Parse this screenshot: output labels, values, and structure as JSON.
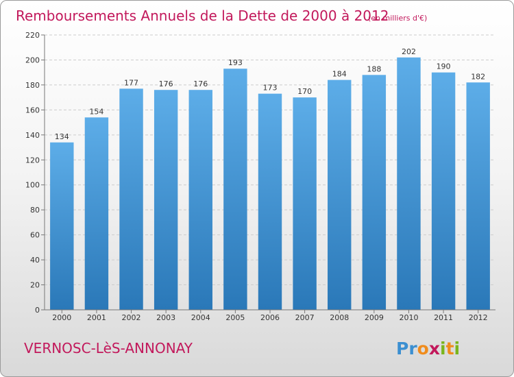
{
  "chart_data": {
    "type": "bar",
    "title": "Remboursements Annuels de la Dette de 2000 à 2012",
    "unit": "(en milliers d'€)",
    "categories": [
      "2000",
      "2001",
      "2002",
      "2003",
      "2004",
      "2005",
      "2006",
      "2007",
      "2008",
      "2009",
      "2010",
      "2011",
      "2012"
    ],
    "values": [
      134,
      154,
      177,
      176,
      176,
      193,
      173,
      170,
      184,
      188,
      202,
      190,
      182
    ],
    "ylim": [
      0,
      220
    ],
    "yticks": [
      0,
      20,
      40,
      60,
      80,
      100,
      120,
      140,
      160,
      180,
      200,
      220
    ],
    "grid": true,
    "xlabel": "",
    "ylabel": ""
  },
  "commune": "VERNOSC-LèS-ANNONAY",
  "logo": {
    "letters": [
      "P",
      "r",
      "o",
      "x",
      "i",
      "t",
      "i"
    ],
    "colors": [
      "#3b8fd1",
      "#3b8fd1",
      "#f08c1d",
      "#c2185b",
      "#7ab51d",
      "#f08c1d",
      "#7ab51d"
    ]
  },
  "colors": {
    "bar_top": "#5dade8",
    "bar_bottom": "#2a78b8",
    "accent": "#c2185b"
  }
}
